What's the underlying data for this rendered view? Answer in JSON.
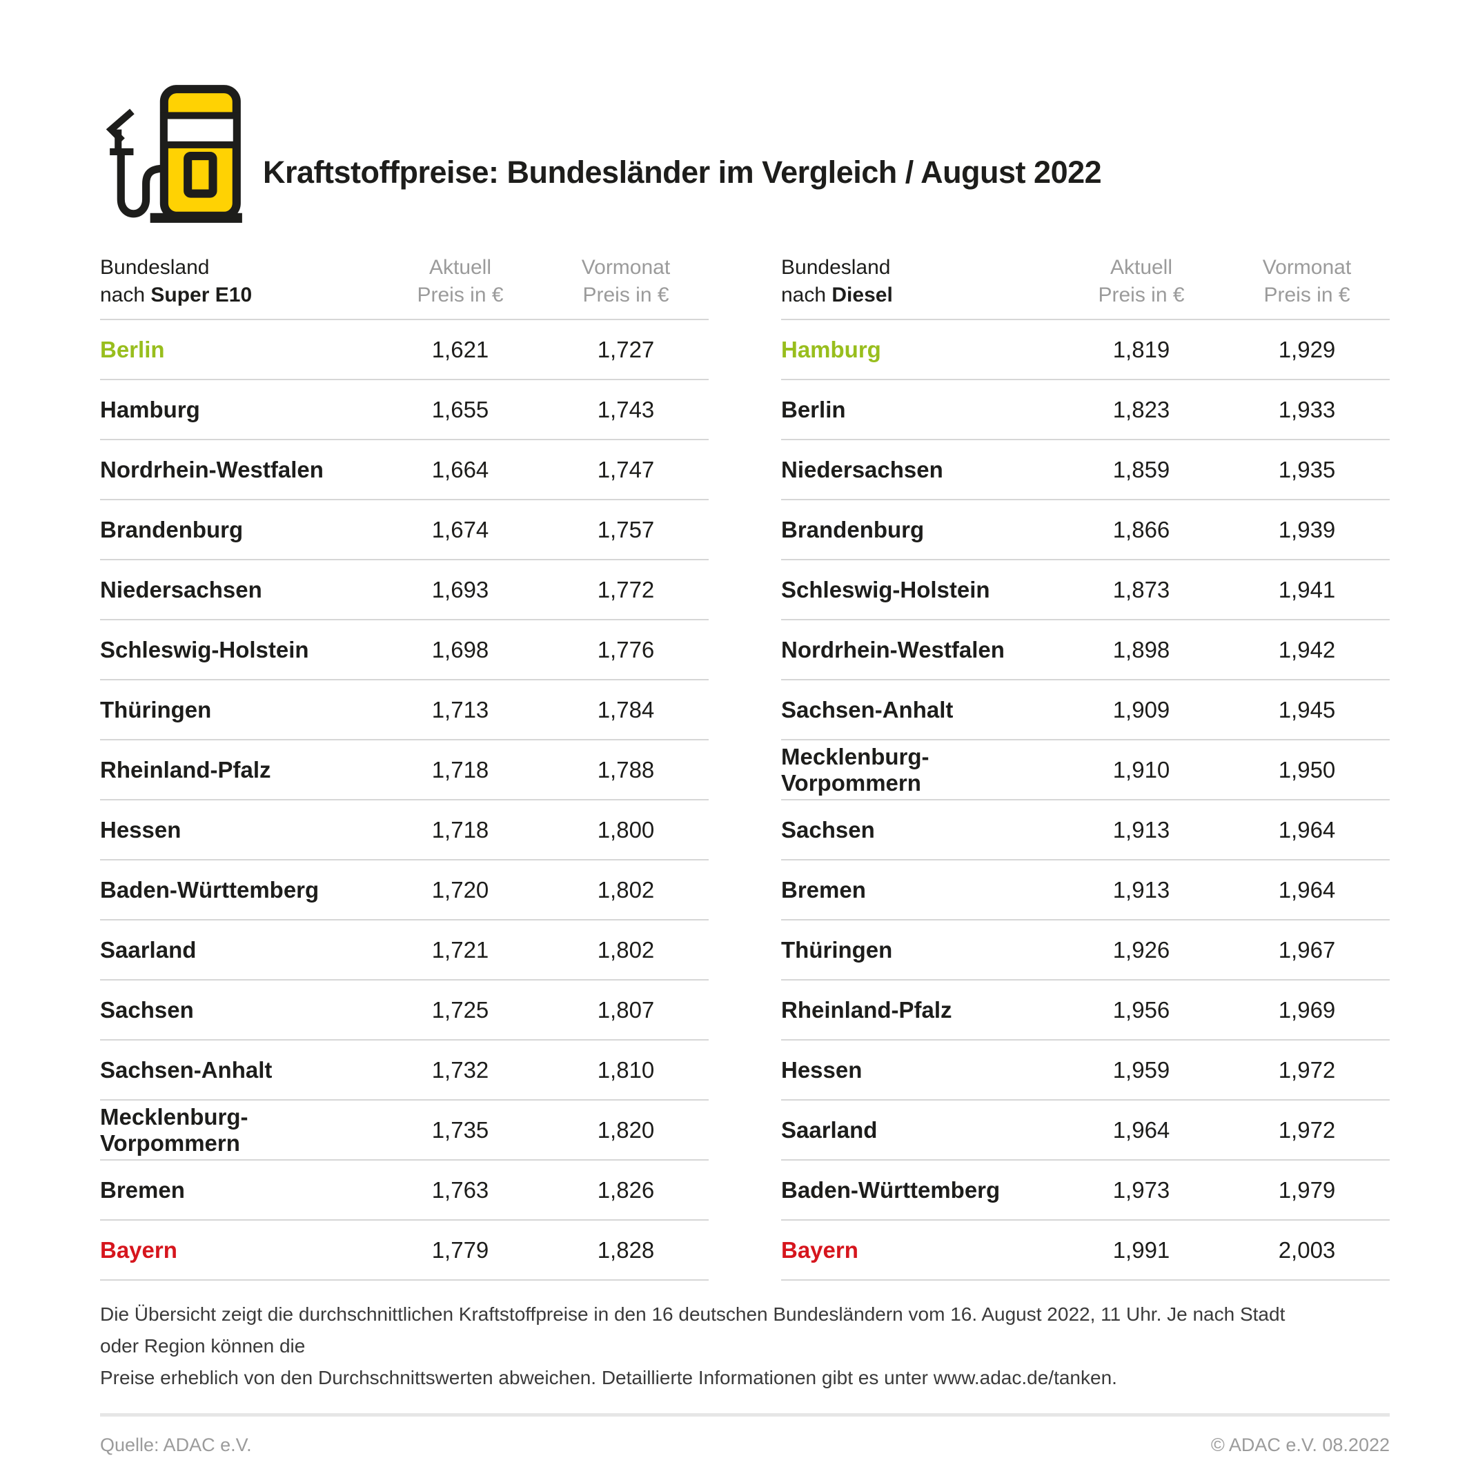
{
  "header": {
    "title": "Kraftstoffpreise: Bundesländer im Vergleich / August 2022"
  },
  "colors": {
    "yellow": "#ffd203",
    "outline": "#1d1d1b",
    "green": "#98be1d",
    "red": "#d6151d",
    "muted_gray": "#9b9b9b",
    "divider_gray": "#d6d6d6"
  },
  "chart_data": [
    {
      "type": "table",
      "group_label": "Bundesland",
      "fuel_prefix": "nach ",
      "fuel": "Super E10",
      "col_aktuell": {
        "line1": "Aktuell",
        "line2": "Preis in €"
      },
      "col_vormonat": {
        "line1": "Vormonat",
        "line2": "Preis in €"
      },
      "rows": [
        {
          "name": "Berlin",
          "aktuell": "1,621",
          "vormonat": "1,727",
          "color": "green"
        },
        {
          "name": "Hamburg",
          "aktuell": "1,655",
          "vormonat": "1,743"
        },
        {
          "name": "Nordrhein-Westfalen",
          "aktuell": "1,664",
          "vormonat": "1,747"
        },
        {
          "name": "Brandenburg",
          "aktuell": "1,674",
          "vormonat": "1,757"
        },
        {
          "name": "Niedersachsen",
          "aktuell": "1,693",
          "vormonat": "1,772"
        },
        {
          "name": "Schleswig-Holstein",
          "aktuell": "1,698",
          "vormonat": "1,776"
        },
        {
          "name": "Thüringen",
          "aktuell": "1,713",
          "vormonat": "1,784"
        },
        {
          "name": "Rheinland-Pfalz",
          "aktuell": "1,718",
          "vormonat": "1,788"
        },
        {
          "name": "Hessen",
          "aktuell": "1,718",
          "vormonat": "1,800"
        },
        {
          "name": "Baden-Württemberg",
          "aktuell": "1,720",
          "vormonat": "1,802"
        },
        {
          "name": "Saarland",
          "aktuell": "1,721",
          "vormonat": "1,802"
        },
        {
          "name": "Sachsen",
          "aktuell": "1,725",
          "vormonat": "1,807"
        },
        {
          "name": "Sachsen-Anhalt",
          "aktuell": "1,732",
          "vormonat": "1,810"
        },
        {
          "name": "Mecklenburg-Vorpommern",
          "aktuell": "1,735",
          "vormonat": "1,820"
        },
        {
          "name": "Bremen",
          "aktuell": "1,763",
          "vormonat": "1,826"
        },
        {
          "name": "Bayern",
          "aktuell": "1,779",
          "vormonat": "1,828",
          "color": "red"
        }
      ]
    },
    {
      "type": "table",
      "group_label": "Bundesland",
      "fuel_prefix": "nach ",
      "fuel": "Diesel",
      "col_aktuell": {
        "line1": "Aktuell",
        "line2": "Preis in €"
      },
      "col_vormonat": {
        "line1": "Vormonat",
        "line2": "Preis in €"
      },
      "rows": [
        {
          "name": "Hamburg",
          "aktuell": "1,819",
          "vormonat": "1,929",
          "color": "green"
        },
        {
          "name": "Berlin",
          "aktuell": "1,823",
          "vormonat": "1,933"
        },
        {
          "name": "Niedersachsen",
          "aktuell": "1,859",
          "vormonat": "1,935"
        },
        {
          "name": "Brandenburg",
          "aktuell": "1,866",
          "vormonat": "1,939"
        },
        {
          "name": "Schleswig-Holstein",
          "aktuell": "1,873",
          "vormonat": "1,941"
        },
        {
          "name": "Nordrhein-Westfalen",
          "aktuell": "1,898",
          "vormonat": "1,942"
        },
        {
          "name": "Sachsen-Anhalt",
          "aktuell": "1,909",
          "vormonat": "1,945"
        },
        {
          "name": "Mecklenburg-Vorpommern",
          "aktuell": "1,910",
          "vormonat": "1,950"
        },
        {
          "name": "Sachsen",
          "aktuell": "1,913",
          "vormonat": "1,964"
        },
        {
          "name": "Bremen",
          "aktuell": "1,913",
          "vormonat": "1,964"
        },
        {
          "name": "Thüringen",
          "aktuell": "1,926",
          "vormonat": "1,967"
        },
        {
          "name": "Rheinland-Pfalz",
          "aktuell": "1,956",
          "vormonat": "1,969"
        },
        {
          "name": "Hessen",
          "aktuell": "1,959",
          "vormonat": "1,972"
        },
        {
          "name": "Saarland",
          "aktuell": "1,964",
          "vormonat": "1,972"
        },
        {
          "name": "Baden-Württemberg",
          "aktuell": "1,973",
          "vormonat": "1,979"
        },
        {
          "name": "Bayern",
          "aktuell": "1,991",
          "vormonat": "2,003",
          "color": "red"
        }
      ]
    }
  ],
  "footnote": {
    "line1": "Die Übersicht zeigt die durchschnittlichen Kraftstoffpreise in den 16 deutschen Bundesländern vom 16. August 2022, 11 Uhr. Je nach Stadt oder Region können die",
    "line2": "Preise erheblich von den Durchschnittswerten abweichen. Detaillierte Informationen gibt es unter www.adac.de/tanken."
  },
  "footer": {
    "source": "Quelle: ADAC e.V.",
    "copyright": "© ADAC e.V. 08.2022"
  }
}
